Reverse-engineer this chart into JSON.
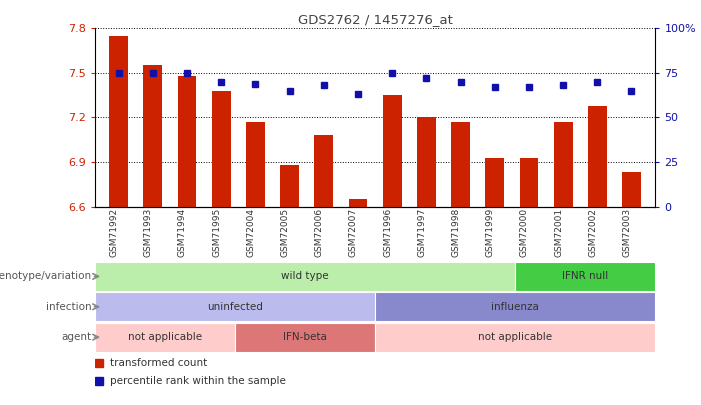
{
  "title": "GDS2762 / 1457276_at",
  "samples": [
    "GSM71992",
    "GSM71993",
    "GSM71994",
    "GSM71995",
    "GSM72004",
    "GSM72005",
    "GSM72006",
    "GSM72007",
    "GSM71996",
    "GSM71997",
    "GSM71998",
    "GSM71999",
    "GSM72000",
    "GSM72001",
    "GSM72002",
    "GSM72003"
  ],
  "bar_values": [
    7.75,
    7.55,
    7.48,
    7.38,
    7.17,
    6.88,
    7.08,
    6.65,
    7.35,
    7.2,
    7.17,
    6.93,
    6.93,
    7.17,
    7.28,
    6.83
  ],
  "percentile_values": [
    75,
    75,
    75,
    70,
    69,
    65,
    68,
    63,
    75,
    72,
    70,
    67,
    67,
    68,
    70,
    65
  ],
  "ylim_left": [
    6.6,
    7.8
  ],
  "ylim_right": [
    0,
    100
  ],
  "yticks_left": [
    6.6,
    6.9,
    7.2,
    7.5,
    7.8
  ],
  "yticks_right": [
    0,
    25,
    50,
    75,
    100
  ],
  "ytick_labels_right": [
    "0",
    "25",
    "50",
    "75",
    "100%"
  ],
  "bar_color": "#cc2200",
  "percentile_color": "#1111aa",
  "annotation_rows": [
    {
      "label": "genotype/variation",
      "segments": [
        {
          "text": "wild type",
          "start": 0,
          "end": 12,
          "color": "#bbeeaa"
        },
        {
          "text": "IFNR null",
          "start": 12,
          "end": 16,
          "color": "#44cc44"
        }
      ]
    },
    {
      "label": "infection",
      "segments": [
        {
          "text": "uninfected",
          "start": 0,
          "end": 8,
          "color": "#bbbbee"
        },
        {
          "text": "influenza",
          "start": 8,
          "end": 16,
          "color": "#8888cc"
        }
      ]
    },
    {
      "label": "agent",
      "segments": [
        {
          "text": "not applicable",
          "start": 0,
          "end": 4,
          "color": "#ffcccc"
        },
        {
          "text": "IFN-beta",
          "start": 4,
          "end": 8,
          "color": "#dd7777"
        },
        {
          "text": "not applicable",
          "start": 8,
          "end": 16,
          "color": "#ffcccc"
        }
      ]
    }
  ],
  "legend_items": [
    {
      "label": "transformed count",
      "color": "#cc2200"
    },
    {
      "label": "percentile rank within the sample",
      "color": "#1111aa"
    }
  ]
}
